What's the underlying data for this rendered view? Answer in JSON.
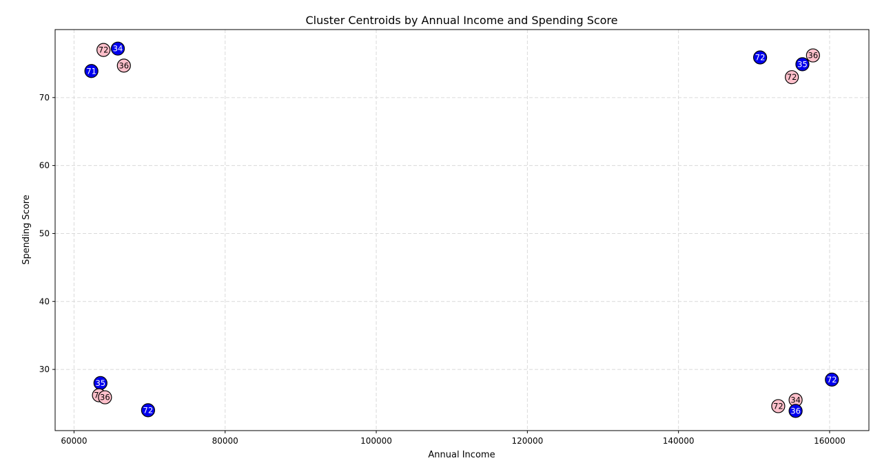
{
  "chart_data": {
    "type": "scatter",
    "title": "Cluster Centroids by Annual Income and Spending Score",
    "xlabel": "Annual Income",
    "ylabel": "Spending Score",
    "xlim": [
      57500,
      165200
    ],
    "ylim": [
      21,
      80
    ],
    "xticks": [
      60000,
      80000,
      100000,
      120000,
      140000,
      160000
    ],
    "xtick_labels": [
      "60000",
      "80000",
      "100000",
      "120000",
      "140000",
      "160000"
    ],
    "yticks": [
      30,
      40,
      50,
      60,
      70
    ],
    "ytick_labels": [
      "30",
      "40",
      "50",
      "60",
      "70"
    ],
    "grid": true,
    "legend": "none",
    "colors": {
      "blue": "#0000ee",
      "pink": "#ffc0cb",
      "edge": "#000000",
      "grid": "#d9d9d9"
    },
    "points": [
      {
        "x": 63900,
        "y": 77.0,
        "label": "72",
        "color": "pink"
      },
      {
        "x": 65800,
        "y": 77.2,
        "label": "34",
        "color": "blue"
      },
      {
        "x": 62300,
        "y": 73.9,
        "label": "71",
        "color": "blue"
      },
      {
        "x": 66600,
        "y": 74.7,
        "label": "36",
        "color": "pink"
      },
      {
        "x": 150800,
        "y": 75.9,
        "label": "72",
        "color": "blue"
      },
      {
        "x": 157800,
        "y": 76.2,
        "label": "36",
        "color": "pink"
      },
      {
        "x": 156400,
        "y": 74.9,
        "label": "35",
        "color": "blue"
      },
      {
        "x": 155000,
        "y": 73.0,
        "label": "72",
        "color": "pink"
      },
      {
        "x": 63500,
        "y": 28.0,
        "label": "35",
        "color": "blue"
      },
      {
        "x": 63300,
        "y": 26.2,
        "label": "72",
        "color": "pink"
      },
      {
        "x": 64100,
        "y": 25.9,
        "label": "36",
        "color": "pink"
      },
      {
        "x": 69800,
        "y": 24.0,
        "label": "72",
        "color": "blue"
      },
      {
        "x": 160300,
        "y": 28.5,
        "label": "72",
        "color": "blue"
      },
      {
        "x": 155500,
        "y": 25.5,
        "label": "34",
        "color": "pink"
      },
      {
        "x": 153200,
        "y": 24.6,
        "label": "72",
        "color": "pink"
      },
      {
        "x": 155500,
        "y": 23.9,
        "label": "36",
        "color": "blue"
      }
    ]
  }
}
